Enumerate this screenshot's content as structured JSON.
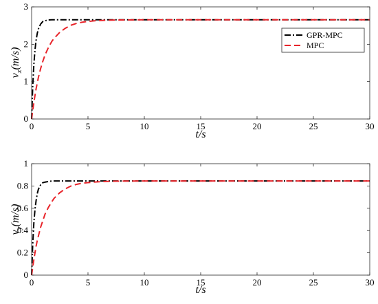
{
  "chart_data": [
    {
      "type": "line",
      "xlabel": "t/s",
      "ylabel": "v_x(m/s)",
      "ylabel_main": "v",
      "ylabel_sub": "x",
      "ylabel_tail": "(m/s)",
      "xlim": [
        0,
        30
      ],
      "ylim": [
        0,
        3
      ],
      "xticks": [
        "0",
        "5",
        "10",
        "15",
        "20",
        "25",
        "30"
      ],
      "yticks": [
        "0",
        "1",
        "2",
        "3"
      ],
      "grid": false,
      "legend_position": "top-right",
      "series": [
        {
          "name": "GPR-MPC",
          "color": "#000000",
          "style": "dash-dot",
          "x": [
            0,
            0.1,
            0.2,
            0.3,
            0.4,
            0.5,
            0.6,
            0.8,
            1.0,
            1.2,
            1.5,
            1.8,
            2.0,
            2.5,
            3.0,
            4.0,
            5.0,
            6.0,
            10.0,
            20.0,
            30.0
          ],
          "y": [
            0,
            0.88,
            1.46,
            1.85,
            2.11,
            2.29,
            2.41,
            2.54,
            2.61,
            2.63,
            2.65,
            2.655,
            2.655,
            2.655,
            2.655,
            2.655,
            2.655,
            2.655,
            2.655,
            2.655,
            2.655
          ]
        },
        {
          "name": "MPC",
          "color": "#e8242a",
          "style": "dashed",
          "x": [
            0,
            0.1,
            0.2,
            0.3,
            0.4,
            0.5,
            0.6,
            0.8,
            1.0,
            1.2,
            1.5,
            1.8,
            2.0,
            2.5,
            3.0,
            3.5,
            4.0,
            4.5,
            5.0,
            5.5,
            6.0,
            7.0,
            8.0,
            10.0,
            20.0,
            30.0
          ],
          "y": [
            0,
            0.23,
            0.44,
            0.63,
            0.81,
            0.96,
            1.11,
            1.35,
            1.55,
            1.72,
            1.92,
            2.08,
            2.16,
            2.32,
            2.43,
            2.51,
            2.56,
            2.59,
            2.61,
            2.625,
            2.635,
            2.645,
            2.65,
            2.655,
            2.655,
            2.655
          ]
        }
      ]
    },
    {
      "type": "line",
      "xlabel": "t/s",
      "ylabel": "v_y(m/s)",
      "ylabel_main": "v",
      "ylabel_sub": "y",
      "ylabel_tail": "(m/s)",
      "xlim": [
        0,
        30
      ],
      "ylim": [
        0,
        1
      ],
      "xticks": [
        "0",
        "5",
        "10",
        "15",
        "20",
        "25",
        "30"
      ],
      "yticks": [
        "0",
        "0.2",
        "0.4",
        "0.6",
        "0.8",
        "1"
      ],
      "grid": false,
      "series": [
        {
          "name": "GPR-MPC",
          "color": "#000000",
          "style": "dash-dot",
          "x": [
            0,
            0.1,
            0.2,
            0.3,
            0.4,
            0.5,
            0.6,
            0.8,
            1.0,
            1.2,
            1.5,
            1.8,
            2.0,
            2.5,
            3.0,
            4.0,
            5.0,
            6.0,
            10.0,
            20.0,
            30.0
          ],
          "y": [
            0,
            0.28,
            0.47,
            0.59,
            0.67,
            0.73,
            0.77,
            0.81,
            0.83,
            0.835,
            0.84,
            0.845,
            0.845,
            0.845,
            0.845,
            0.845,
            0.845,
            0.845,
            0.845,
            0.845,
            0.845
          ]
        },
        {
          "name": "MPC",
          "color": "#e8242a",
          "style": "dashed",
          "x": [
            0,
            0.1,
            0.2,
            0.3,
            0.4,
            0.5,
            0.6,
            0.8,
            1.0,
            1.2,
            1.5,
            1.8,
            2.0,
            2.5,
            3.0,
            3.5,
            4.0,
            4.5,
            5.0,
            5.5,
            6.0,
            7.0,
            8.0,
            10.0,
            20.0,
            30.0
          ],
          "y": [
            0,
            0.07,
            0.14,
            0.2,
            0.26,
            0.31,
            0.35,
            0.43,
            0.49,
            0.55,
            0.61,
            0.66,
            0.69,
            0.74,
            0.775,
            0.8,
            0.815,
            0.825,
            0.83,
            0.835,
            0.838,
            0.842,
            0.844,
            0.845,
            0.845,
            0.845
          ]
        }
      ]
    }
  ]
}
